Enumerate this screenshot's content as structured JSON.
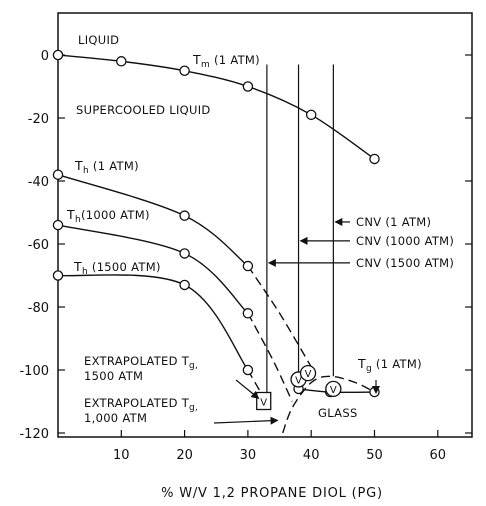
{
  "chart_data": {
    "type": "line",
    "xlabel": "% W/V 1,2 PROPANE DIOL (PG)",
    "ylabel": "",
    "xlim": [
      0,
      65
    ],
    "ylim": [
      -120,
      10
    ],
    "x_ticks": [
      10,
      20,
      30,
      40,
      50,
      60
    ],
    "y_ticks": [
      0,
      -20,
      -40,
      -60,
      -80,
      -100,
      -120
    ],
    "region_labels": {
      "liquid": "LIQUID",
      "supercooled": "SUPERCOOLED LIQUID",
      "glass": "GLASS"
    },
    "series": [
      {
        "name": "Tm (1 ATM)",
        "label_main": "T",
        "label_sub": "m",
        "label_rest": " (1 ATM)",
        "points": [
          [
            0,
            0
          ],
          [
            10,
            -2
          ],
          [
            20,
            -5
          ],
          [
            30,
            -10
          ],
          [
            40,
            -19
          ],
          [
            50,
            -33
          ]
        ]
      },
      {
        "name": "Th (1 ATM)",
        "label_main": "T",
        "label_sub": "h",
        "label_rest": " (1 ATM)",
        "points": [
          [
            0,
            -38
          ],
          [
            20,
            -51
          ],
          [
            30,
            -67
          ]
        ],
        "extrapolated": [
          [
            30,
            -67
          ],
          [
            35,
            -82
          ],
          [
            40,
            -99
          ]
        ]
      },
      {
        "name": "Th (1000 ATM)",
        "label_main": "T",
        "label_sub": "h",
        "label_rest": "(1000 ATM)",
        "points": [
          [
            0,
            -54
          ],
          [
            20,
            -63
          ],
          [
            30,
            -82
          ]
        ],
        "extrapolated": [
          [
            30,
            -82
          ],
          [
            34,
            -97
          ],
          [
            37,
            -110
          ]
        ]
      },
      {
        "name": "Th (1500 ATM)",
        "label_main": "T",
        "label_sub": "h",
        "label_rest": " (1500 ATM)",
        "points": [
          [
            0,
            -70
          ],
          [
            20,
            -73
          ],
          [
            30,
            -100
          ]
        ],
        "extrapolated": [
          [
            30,
            -100
          ],
          [
            32,
            -107
          ],
          [
            33,
            -110
          ]
        ]
      },
      {
        "name": "Tg (1 ATM)",
        "label_main": "T",
        "label_sub": "g",
        "label_rest": " (1 ATM)",
        "points": [
          [
            38,
            -106
          ],
          [
            43,
            -107
          ],
          [
            50,
            -107
          ]
        ],
        "glass_curve": [
          [
            35.5,
            -120
          ],
          [
            37,
            -112
          ],
          [
            40,
            -104
          ],
          [
            43,
            -102
          ],
          [
            47,
            -104
          ],
          [
            50,
            -107
          ]
        ]
      }
    ],
    "cnv_lines": [
      {
        "label": "CNV (1 ATM)",
        "x": 43.5,
        "y_top": -3,
        "y_bottom": -102,
        "arrow_y": -53
      },
      {
        "label": "CNV (1000 ATM)",
        "x": 38,
        "y_top": -3,
        "y_bottom": -104,
        "arrow_y": -59
      },
      {
        "label": "CNV (1500 ATM)",
        "x": 33,
        "y_top": -3,
        "y_bottom": -110,
        "arrow_y": -66
      }
    ],
    "vitrification_markers": [
      {
        "label": "V",
        "x": 32.5,
        "y": -110,
        "shape": "square"
      },
      {
        "label": "V",
        "x": 38,
        "y": -103,
        "shape": "circle"
      },
      {
        "label": "V",
        "x": 39.5,
        "y": -101,
        "shape": "circle"
      },
      {
        "label": "V",
        "x": 43.5,
        "y": -106,
        "shape": "circle"
      }
    ],
    "annotations": [
      {
        "line1": "EXTRAPOLATED T",
        "sub": "g,",
        "line2": "1500 ATM",
        "arrow_to": [
          32,
          -109
        ]
      },
      {
        "line1": "EXTRAPOLATED T",
        "sub": "g,",
        "line2": "1,000 ATM",
        "arrow_to": [
          35,
          -116
        ]
      }
    ]
  }
}
